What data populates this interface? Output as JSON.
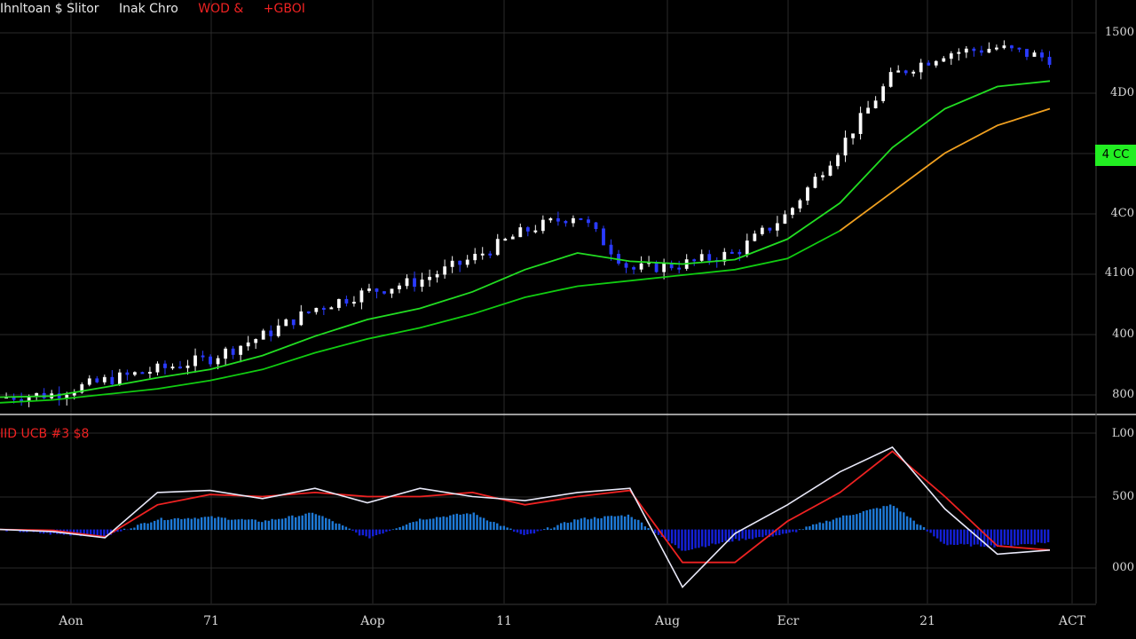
{
  "header": {
    "symbol": "Ihnltoan $ Slitor",
    "interval": "Inak Chro",
    "values": [
      "WOD &",
      "+GBOI"
    ],
    "macd_label": "IID UCB #3 $8"
  },
  "colors": {
    "background": "#000000",
    "grid": "#2a2a2a",
    "separator": "#d0d0d0",
    "candle_up": "#f2f2f2",
    "candle_down": "#2a3bff",
    "ma_fast": "#22dd22",
    "ma_slow": "#11cc11",
    "ma_slow_tail_mid": "#ee2a2a",
    "ma_slow_tail_end": "#f0a020",
    "macd_line": "#e8e8f8",
    "signal_line": "#ee2222",
    "hist_pos": "#1e7ad8",
    "hist_neg": "#1420d8",
    "header_main": "#e8e8e8",
    "header_values": "#ee2222",
    "price_tag": "#22ee22"
  },
  "y_axis_labels": [
    "1500",
    "4D0",
    "4C0",
    "4100",
    "400",
    "800",
    "800"
  ],
  "macd_axis_labels": [
    "L00",
    "500",
    "000"
  ],
  "price_tag": "4 CC",
  "x_axis_labels": [
    "Aon",
    "71",
    "Aop",
    "11",
    "Aug",
    "Ecr",
    "21",
    "ACT"
  ],
  "chart_data": [
    {
      "type": "line",
      "title": "",
      "description_series": "candlesticks with two moving averages",
      "x": [
        0,
        5,
        10,
        15,
        20,
        25,
        30,
        35,
        40,
        45,
        50,
        55,
        60,
        65,
        70,
        75,
        80,
        85,
        90,
        95,
        100
      ],
      "series": [
        {
          "values": [
            800,
            805,
            830,
            850,
            870,
            910,
            960,
            990,
            1010,
            1050,
            1100,
            1130,
            1030,
            1040,
            1060,
            1130,
            1250,
            1380,
            1420,
            1430,
            1410
          ]
        },
        {
          "values": [
            800,
            802,
            818,
            835,
            850,
            875,
            910,
            940,
            960,
            990,
            1030,
            1060,
            1045,
            1040,
            1048,
            1085,
            1150,
            1250,
            1320,
            1360,
            1370
          ]
        },
        {
          "values": [
            790,
            795,
            805,
            815,
            830,
            850,
            880,
            905,
            925,
            950,
            980,
            1000,
            1010,
            1020,
            1030,
            1050,
            1100,
            1170,
            1240,
            1290,
            1320
          ]
        }
      ],
      "ylim": [
        780,
        1500
      ]
    },
    {
      "type": "bar",
      "title": "",
      "x": [
        0,
        5,
        10,
        15,
        20,
        25,
        30,
        35,
        40,
        45,
        50,
        55,
        60,
        65,
        70,
        75,
        80,
        85,
        90,
        95,
        100
      ],
      "series": [
        {
          "values": [
            0,
            -10,
            -15,
            25,
            30,
            20,
            40,
            -20,
            25,
            40,
            -15,
            25,
            35,
            -50,
            -25,
            -10,
            30,
            60,
            -35,
            -40,
            -30
          ]
        },
        {
          "values": [
            0,
            -5,
            -20,
            90,
            95,
            75,
            100,
            65,
            100,
            80,
            70,
            90,
            100,
            -140,
            -10,
            60,
            140,
            200,
            50,
            -60,
            -50
          ]
        },
        {
          "values": [
            0,
            -2,
            -18,
            60,
            85,
            80,
            90,
            80,
            80,
            90,
            60,
            80,
            95,
            -80,
            -80,
            20,
            90,
            190,
            80,
            -40,
            -50
          ]
        }
      ],
      "ylim": [
        -180,
        230
      ]
    }
  ]
}
